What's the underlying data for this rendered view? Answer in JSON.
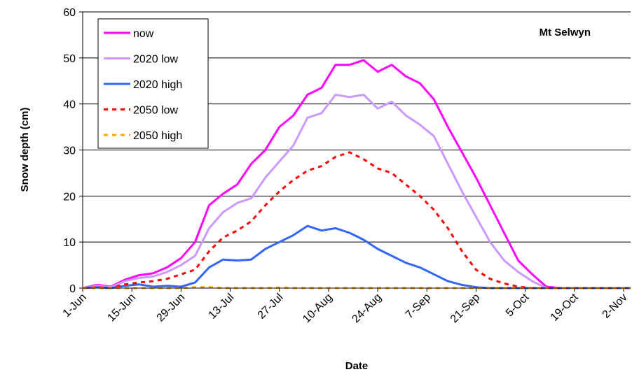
{
  "chart_data": {
    "type": "line",
    "annotation": "Mt Selwyn",
    "x_label": "Date",
    "y_label": "Snow depth (cm)",
    "x": [
      "1-Jun",
      "5-Jun",
      "9-Jun",
      "13-Jun",
      "17-Jun",
      "21-Jun",
      "25-Jun",
      "29-Jun",
      "3-Jul",
      "7-Jul",
      "11-Jul",
      "15-Jul",
      "19-Jul",
      "23-Jul",
      "27-Jul",
      "31-Jul",
      "4-Aug",
      "8-Aug",
      "12-Aug",
      "16-Aug",
      "20-Aug",
      "24-Aug",
      "28-Aug",
      "1-Sep",
      "5-Sep",
      "9-Sep",
      "13-Sep",
      "17-Sep",
      "21-Sep",
      "25-Sep",
      "29-Sep",
      "3-Oct",
      "7-Oct",
      "11-Oct",
      "15-Oct",
      "19-Oct",
      "23-Oct",
      "27-Oct",
      "31-Oct",
      "4-Nov"
    ],
    "series": [
      {
        "name": "now",
        "color": "#ff00ff",
        "dashed": false,
        "values": [
          0,
          0.7,
          0.3,
          1.8,
          2.8,
          3.2,
          4.5,
          6.5,
          10,
          18,
          20.5,
          22.5,
          27,
          30,
          35,
          37.5,
          42,
          43.5,
          48.5,
          48.5,
          49.5,
          47,
          48.5,
          46,
          44.5,
          41,
          35,
          29.5,
          24,
          18,
          12,
          6,
          3,
          0.3,
          0,
          0,
          0,
          0,
          0,
          0
        ]
      },
      {
        "name": "2020 low",
        "color": "#cc99ff",
        "dashed": false,
        "values": [
          0,
          0.5,
          0.2,
          1.5,
          2.2,
          2.5,
          3.5,
          5,
          7,
          13,
          16.5,
          18.5,
          19.5,
          24,
          27.5,
          31,
          37,
          38,
          42,
          41.5,
          42,
          39,
          40.5,
          37.5,
          35.5,
          33,
          27,
          21,
          15.5,
          10,
          6,
          3.5,
          1.5,
          0,
          0,
          0,
          0,
          0,
          0,
          0
        ]
      },
      {
        "name": "2020 high",
        "color": "#3366ff",
        "dashed": false,
        "values": [
          0,
          0.2,
          0,
          0.5,
          0.8,
          0.3,
          0.5,
          0.3,
          1.2,
          4.5,
          6.2,
          6,
          6.2,
          8.5,
          10,
          11.5,
          13.5,
          12.5,
          13,
          12,
          10.5,
          8.5,
          7,
          5.5,
          4.5,
          3,
          1.5,
          0.7,
          0.2,
          0,
          0,
          0,
          0,
          0,
          0,
          0,
          0,
          0,
          0,
          0
        ]
      },
      {
        "name": "2050 low",
        "color": "#ff0000",
        "dashed": true,
        "values": [
          0,
          0.2,
          0,
          0.8,
          1.2,
          1.5,
          2,
          3,
          4,
          8,
          11,
          12.5,
          14.5,
          18,
          21,
          23.5,
          25.5,
          26.5,
          28.5,
          29.5,
          28,
          26,
          25,
          22.5,
          20,
          17,
          13,
          8,
          4,
          2,
          1,
          0.3,
          0,
          0,
          0,
          0,
          0,
          0,
          0,
          0
        ]
      },
      {
        "name": "2050 high",
        "color": "#ffa500",
        "dashed": true,
        "values": [
          0,
          0,
          0,
          0,
          0,
          0,
          0,
          0,
          0.2,
          0.2,
          0,
          0,
          0,
          0,
          0.1,
          0,
          0,
          0,
          0,
          0,
          0,
          0,
          0,
          0,
          0,
          0,
          0,
          0,
          0,
          0,
          0,
          0,
          0,
          0,
          0,
          0,
          0,
          0,
          0,
          0
        ]
      }
    ],
    "xlim": [
      "1-Jun",
      "4-Nov"
    ],
    "xticks": [
      "1-Jun",
      "15-Jun",
      "29-Jun",
      "13-Jul",
      "27-Jul",
      "10-Aug",
      "24-Aug",
      "7-Sep",
      "21-Sep",
      "5-Oct",
      "19-Oct",
      "2-Nov"
    ],
    "ylim": [
      0,
      60
    ],
    "yticks": [
      0,
      10,
      20,
      30,
      40,
      50,
      60
    ],
    "grid": true,
    "legend": "top-left"
  }
}
